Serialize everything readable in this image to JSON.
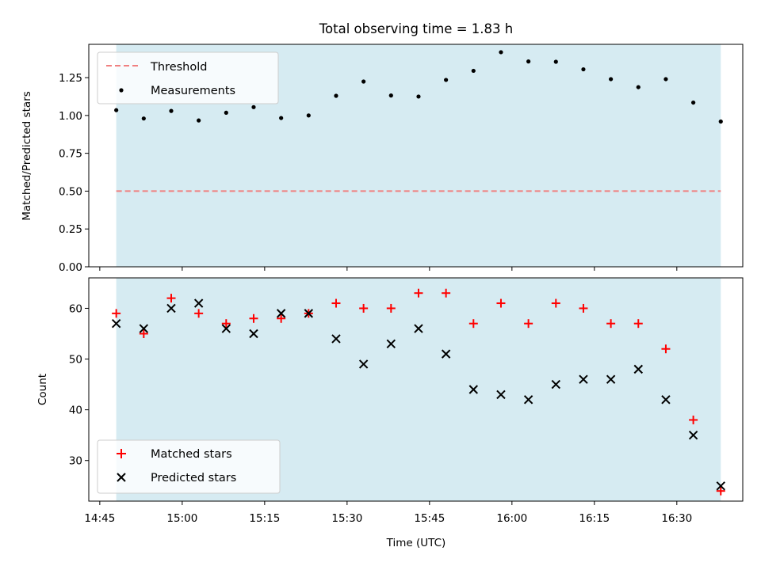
{
  "chart_data": [
    {
      "type": "scatter",
      "title": "Total observing time = 1.83 h",
      "xlabel": "",
      "ylabel": "Matched/Predicted stars",
      "ylim": [
        0,
        1.47
      ],
      "yticks": [
        "0.00",
        "0.25",
        "0.50",
        "0.75",
        "1.00",
        "1.25"
      ],
      "shaded_span": [
        "14:48",
        "16:38"
      ],
      "shade_color": "#add8e6",
      "threshold": {
        "name": "Threshold",
        "value": 0.5,
        "color": "#f08080",
        "style": "dashed"
      },
      "series": [
        {
          "name": "Measurements",
          "color": "#000000",
          "marker": "dot",
          "x": [
            "14:48",
            "14:53",
            "14:58",
            "15:03",
            "15:08",
            "15:13",
            "15:18",
            "15:23",
            "15:28",
            "15:33",
            "15:38",
            "15:43",
            "15:48",
            "15:53",
            "15:58",
            "16:03",
            "16:08",
            "16:13",
            "16:18",
            "16:23",
            "16:28",
            "16:33",
            "16:38"
          ],
          "y": [
            1.035,
            0.98,
            1.03,
            0.967,
            1.018,
            1.055,
            0.983,
            1.0,
            1.13,
            1.224,
            1.132,
            1.125,
            1.235,
            1.295,
            1.418,
            1.357,
            1.355,
            1.305,
            1.24,
            1.187,
            1.24,
            1.085,
            0.96
          ]
        }
      ],
      "legend": "top-left",
      "grid": false
    },
    {
      "type": "scatter",
      "title": "",
      "xlabel": "Time (UTC)",
      "ylabel": "Count",
      "ylim": [
        22,
        66
      ],
      "yticks": [
        "30",
        "40",
        "50",
        "60"
      ],
      "xticks": [
        "14:45",
        "15:00",
        "15:15",
        "15:30",
        "15:45",
        "16:00",
        "16:15",
        "16:30"
      ],
      "xlim": [
        "14:43",
        "16:42"
      ],
      "shaded_span": [
        "14:48",
        "16:38"
      ],
      "shade_color": "#add8e6",
      "series": [
        {
          "name": "Matched stars",
          "color": "#ff0000",
          "marker": "plus",
          "x": [
            "14:48",
            "14:53",
            "14:58",
            "15:03",
            "15:08",
            "15:13",
            "15:18",
            "15:23",
            "15:28",
            "15:33",
            "15:38",
            "15:43",
            "15:48",
            "15:53",
            "15:58",
            "16:03",
            "16:08",
            "16:13",
            "16:18",
            "16:23",
            "16:28",
            "16:33",
            "16:38"
          ],
          "y": [
            59,
            55,
            62,
            59,
            57,
            58,
            58,
            59,
            61,
            60,
            60,
            63,
            63,
            57,
            61,
            57,
            61,
            60,
            57,
            57,
            52,
            38,
            24
          ]
        },
        {
          "name": "Predicted stars",
          "color": "#000000",
          "marker": "x",
          "x": [
            "14:48",
            "14:53",
            "14:58",
            "15:03",
            "15:08",
            "15:13",
            "15:18",
            "15:23",
            "15:28",
            "15:33",
            "15:38",
            "15:43",
            "15:48",
            "15:53",
            "15:58",
            "16:03",
            "16:08",
            "16:13",
            "16:18",
            "16:23",
            "16:28",
            "16:33",
            "16:38"
          ],
          "y": [
            57,
            56,
            60,
            61,
            56,
            55,
            59,
            59,
            54,
            49,
            53,
            56,
            51,
            44,
            43,
            42,
            45,
            46,
            46,
            48,
            42,
            35,
            25
          ]
        }
      ],
      "legend": "bottom-left",
      "grid": false
    }
  ]
}
